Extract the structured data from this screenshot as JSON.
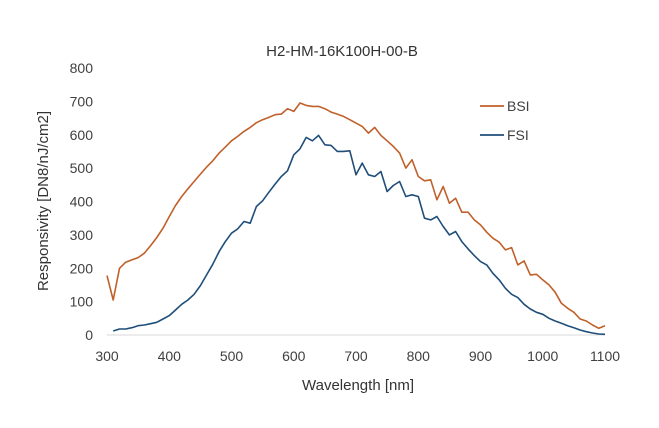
{
  "chart_data": {
    "type": "line",
    "title": "H2-HM-16K100H-00-B",
    "xlabel": "Wavelength [nm]",
    "ylabel": "Responsivity [DN8/nJ/cm2]",
    "xlim": [
      300,
      1100
    ],
    "ylim": [
      0,
      800
    ],
    "xticks": [
      300,
      400,
      500,
      600,
      700,
      800,
      900,
      1000,
      1100
    ],
    "yticks": [
      0,
      100,
      200,
      300,
      400,
      500,
      600,
      700,
      800
    ],
    "grid": false,
    "legend_position": "right",
    "series": [
      {
        "name": "BSI",
        "color": "#C0602A",
        "x": [
          300,
          310,
          320,
          330,
          340,
          350,
          360,
          370,
          380,
          390,
          400,
          410,
          420,
          430,
          440,
          450,
          460,
          470,
          480,
          490,
          500,
          510,
          520,
          530,
          540,
          550,
          560,
          570,
          580,
          590,
          600,
          610,
          620,
          630,
          640,
          650,
          660,
          670,
          680,
          690,
          700,
          710,
          720,
          730,
          740,
          750,
          760,
          770,
          780,
          790,
          800,
          810,
          820,
          830,
          840,
          850,
          860,
          870,
          880,
          890,
          900,
          910,
          920,
          930,
          940,
          950,
          960,
          970,
          980,
          990,
          1000,
          1010,
          1020,
          1030,
          1040,
          1050,
          1060,
          1070,
          1080,
          1090,
          1100
        ],
        "values": [
          178,
          105,
          200,
          218,
          225,
          232,
          245,
          268,
          292,
          320,
          355,
          388,
          415,
          438,
          460,
          482,
          503,
          522,
          545,
          563,
          582,
          595,
          610,
          622,
          636,
          645,
          652,
          660,
          662,
          678,
          670,
          695,
          688,
          685,
          685,
          678,
          668,
          662,
          655,
          645,
          635,
          625,
          605,
          622,
          598,
          582,
          565,
          545,
          500,
          525,
          475,
          462,
          465,
          405,
          445,
          395,
          410,
          368,
          368,
          345,
          330,
          308,
          290,
          278,
          255,
          262,
          210,
          222,
          180,
          182,
          165,
          150,
          128,
          95,
          80,
          68,
          48,
          42,
          30,
          20,
          28
        ]
      },
      {
        "name": "FSI",
        "color": "#1F4E79",
        "x": [
          310,
          320,
          330,
          340,
          350,
          360,
          370,
          380,
          390,
          400,
          410,
          420,
          430,
          440,
          450,
          460,
          470,
          480,
          490,
          500,
          510,
          520,
          530,
          540,
          550,
          560,
          570,
          580,
          590,
          600,
          610,
          620,
          630,
          640,
          650,
          660,
          670,
          680,
          690,
          700,
          710,
          720,
          730,
          740,
          750,
          760,
          770,
          780,
          790,
          800,
          810,
          820,
          830,
          840,
          850,
          860,
          870,
          880,
          890,
          900,
          910,
          920,
          930,
          940,
          950,
          960,
          970,
          980,
          990,
          1000,
          1010,
          1020,
          1030,
          1040,
          1050,
          1060,
          1070,
          1080,
          1090,
          1100
        ],
        "values": [
          12,
          18,
          18,
          22,
          28,
          30,
          34,
          38,
          48,
          58,
          75,
          92,
          105,
          122,
          148,
          180,
          212,
          250,
          280,
          305,
          318,
          340,
          335,
          385,
          402,
          428,
          452,
          475,
          492,
          540,
          558,
          592,
          582,
          598,
          570,
          568,
          550,
          550,
          552,
          480,
          515,
          480,
          475,
          490,
          430,
          448,
          460,
          415,
          420,
          415,
          350,
          345,
          355,
          325,
          300,
          310,
          280,
          258,
          238,
          220,
          210,
          185,
          165,
          140,
          122,
          112,
          92,
          78,
          68,
          62,
          50,
          42,
          35,
          28,
          22,
          15,
          10,
          6,
          3,
          2
        ]
      }
    ]
  }
}
